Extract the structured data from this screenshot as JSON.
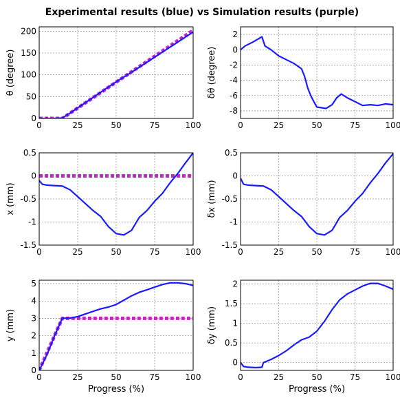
{
  "figure_title": "Experimental results (blue) vs Simulation results (purple)",
  "colors": {
    "experimental": "#1a1aff",
    "simulation": "#cc1fcc"
  },
  "chart_data": [
    {
      "type": "line",
      "id": "theta",
      "ylabel": "θ (degree)",
      "xlabel": "",
      "xlim": [
        0,
        100
      ],
      "ylim": [
        0,
        210
      ],
      "xticks": [
        "0",
        "25",
        "50",
        "75",
        "100"
      ],
      "yticks": [
        "0",
        "50",
        "100",
        "150",
        "200"
      ],
      "series": [
        {
          "key": "experimental",
          "x": [
            0,
            10,
            15,
            20,
            30,
            40,
            50,
            60,
            70,
            80,
            90,
            100
          ],
          "y": [
            0,
            0,
            1,
            12,
            36,
            60,
            84,
            106,
            129,
            152,
            175,
            198
          ]
        },
        {
          "key": "simulation",
          "x": [
            0,
            15,
            100
          ],
          "y": [
            0,
            0,
            202
          ]
        }
      ]
    },
    {
      "type": "line",
      "id": "dtheta",
      "ylabel": "δθ (degree)",
      "xlabel": "",
      "xlim": [
        0,
        100
      ],
      "ylim": [
        -9,
        3
      ],
      "xticks": [
        "0",
        "25",
        "50",
        "75",
        "100"
      ],
      "yticks": [
        "-8",
        "-6",
        "-4",
        "-2",
        "0",
        "2"
      ],
      "series": [
        {
          "key": "experimental",
          "x": [
            0,
            3,
            8,
            14,
            16,
            20,
            25,
            30,
            35,
            40,
            42,
            44,
            46,
            48,
            50,
            53,
            56,
            60,
            63,
            66,
            70,
            75,
            80,
            85,
            90,
            95,
            100
          ],
          "y": [
            0,
            0.5,
            1.0,
            1.7,
            0.5,
            0.0,
            -0.8,
            -1.3,
            -1.8,
            -2.5,
            -3.5,
            -5.0,
            -6.0,
            -6.8,
            -7.5,
            -7.6,
            -7.7,
            -7.2,
            -6.3,
            -5.8,
            -6.3,
            -6.8,
            -7.3,
            -7.2,
            -7.3,
            -7.1,
            -7.2
          ]
        }
      ]
    },
    {
      "type": "line",
      "id": "x",
      "ylabel": "x (mm)",
      "xlabel": "",
      "xlim": [
        0,
        100
      ],
      "ylim": [
        -1.5,
        0.5
      ],
      "xticks": [
        "0",
        "25",
        "50",
        "75",
        "100"
      ],
      "yticks": [
        "-1.5",
        "-1",
        "-0.5",
        "0",
        "0.5"
      ],
      "series": [
        {
          "key": "experimental",
          "x": [
            0,
            2,
            5,
            10,
            15,
            20,
            25,
            30,
            35,
            40,
            45,
            50,
            55,
            60,
            65,
            70,
            75,
            80,
            85,
            90,
            95,
            100
          ],
          "y": [
            -0.1,
            -0.18,
            -0.2,
            -0.21,
            -0.22,
            -0.3,
            -0.45,
            -0.6,
            -0.75,
            -0.88,
            -1.1,
            -1.25,
            -1.28,
            -1.18,
            -0.9,
            -0.75,
            -0.55,
            -0.38,
            -0.15,
            0.05,
            0.28,
            0.5
          ]
        },
        {
          "key": "simulation",
          "x": [
            0,
            100
          ],
          "y": [
            0,
            0
          ]
        }
      ]
    },
    {
      "type": "line",
      "id": "dx",
      "ylabel": "δx (mm)",
      "xlabel": "",
      "xlim": [
        0,
        100
      ],
      "ylim": [
        -1.5,
        0.5
      ],
      "xticks": [
        "0",
        "25",
        "50",
        "75",
        "100"
      ],
      "yticks": [
        "-1.5",
        "-1",
        "-0.5",
        "0",
        "0.5"
      ],
      "series": [
        {
          "key": "experimental",
          "x": [
            0,
            2,
            5,
            10,
            15,
            20,
            25,
            30,
            35,
            40,
            45,
            50,
            55,
            60,
            65,
            70,
            75,
            80,
            85,
            90,
            95,
            100
          ],
          "y": [
            -0.05,
            -0.18,
            -0.2,
            -0.21,
            -0.22,
            -0.3,
            -0.45,
            -0.6,
            -0.75,
            -0.88,
            -1.1,
            -1.25,
            -1.28,
            -1.18,
            -0.9,
            -0.75,
            -0.55,
            -0.38,
            -0.15,
            0.05,
            0.28,
            0.48
          ]
        }
      ]
    },
    {
      "type": "line",
      "id": "y",
      "ylabel": "y (mm)",
      "xlabel": "Progress (%)",
      "xlim": [
        0,
        100
      ],
      "ylim": [
        0,
        5.2
      ],
      "xticks": [
        "0",
        "25",
        "50",
        "75",
        "100"
      ],
      "yticks": [
        "0",
        "1",
        "2",
        "3",
        "4",
        "5"
      ],
      "series": [
        {
          "key": "experimental",
          "x": [
            0,
            5,
            10,
            15,
            20,
            25,
            30,
            35,
            40,
            45,
            50,
            55,
            60,
            65,
            70,
            75,
            80,
            85,
            90,
            95,
            100
          ],
          "y": [
            0,
            0.9,
            2.0,
            3.0,
            3.02,
            3.1,
            3.25,
            3.4,
            3.55,
            3.65,
            3.8,
            4.05,
            4.3,
            4.5,
            4.65,
            4.8,
            4.95,
            5.05,
            5.05,
            5.0,
            4.9
          ]
        },
        {
          "key": "simulation",
          "x": [
            0,
            15,
            100
          ],
          "y": [
            0,
            3,
            3
          ]
        }
      ]
    },
    {
      "type": "line",
      "id": "dy",
      "ylabel": "δy (mm)",
      "xlabel": "Progress (%)",
      "xlim": [
        0,
        100
      ],
      "ylim": [
        -0.2,
        2.1
      ],
      "xticks": [
        "0",
        "25",
        "50",
        "75",
        "100"
      ],
      "yticks": [
        "0",
        "0.5",
        "1",
        "1.5",
        "2"
      ],
      "series": [
        {
          "key": "experimental",
          "x": [
            0,
            2,
            5,
            10,
            14,
            15,
            20,
            25,
            30,
            35,
            40,
            45,
            50,
            55,
            60,
            65,
            70,
            75,
            80,
            85,
            90,
            95,
            100
          ],
          "y": [
            0,
            -0.1,
            -0.12,
            -0.13,
            -0.12,
            0,
            0.08,
            0.18,
            0.3,
            0.45,
            0.58,
            0.65,
            0.8,
            1.05,
            1.35,
            1.6,
            1.75,
            1.85,
            1.95,
            2.02,
            2.02,
            1.95,
            1.87
          ]
        }
      ]
    }
  ]
}
